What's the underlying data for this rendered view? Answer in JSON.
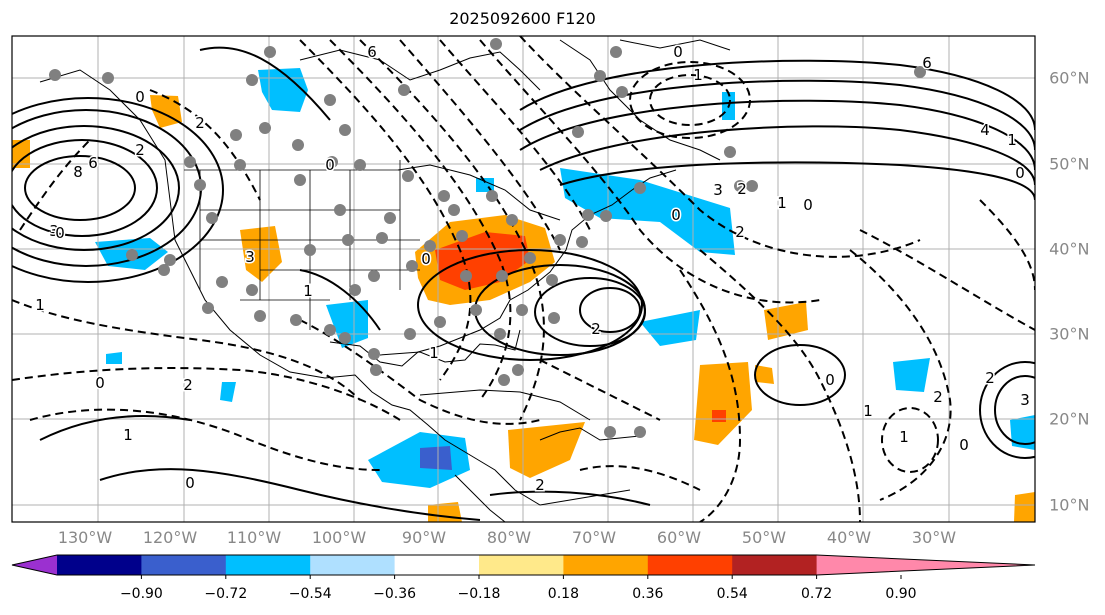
{
  "title": "2025092600 F120",
  "lon_labels": [
    "130°W",
    "120°W",
    "110°W",
    "100°W",
    "90°W",
    "80°W",
    "70°W",
    "60°W",
    "50°W",
    "40°W",
    "30°W"
  ],
  "lat_labels": [
    "60°N",
    "50°N",
    "40°N",
    "30°N",
    "20°N",
    "10°N"
  ],
  "colorbar": {
    "ticks": [
      "−0.90",
      "−0.72",
      "−0.54",
      "−0.36",
      "−0.18",
      "0.18",
      "0.36",
      "0.54",
      "0.72",
      "0.90"
    ],
    "colors": [
      "#9b30d0",
      "#00008b",
      "#3a5fcd",
      "#00bfff",
      "#afe0ff",
      "#ffffff",
      "#ffe98a",
      "#ffa500",
      "#ff4000",
      "#b22222",
      "#ff88aa"
    ]
  },
  "contour_labels": [
    "6",
    "0",
    "1",
    "6",
    "4",
    "3",
    "2",
    "0",
    "1",
    "8",
    "6",
    "3",
    "0",
    "0",
    "0",
    "1",
    "1",
    "2",
    "0",
    "1",
    "0",
    "2",
    "1",
    "0",
    "2",
    "0",
    "2",
    "1",
    "0",
    "1",
    "2",
    "1",
    "0",
    "3",
    "2",
    "3",
    "2",
    "0",
    "2"
  ]
}
